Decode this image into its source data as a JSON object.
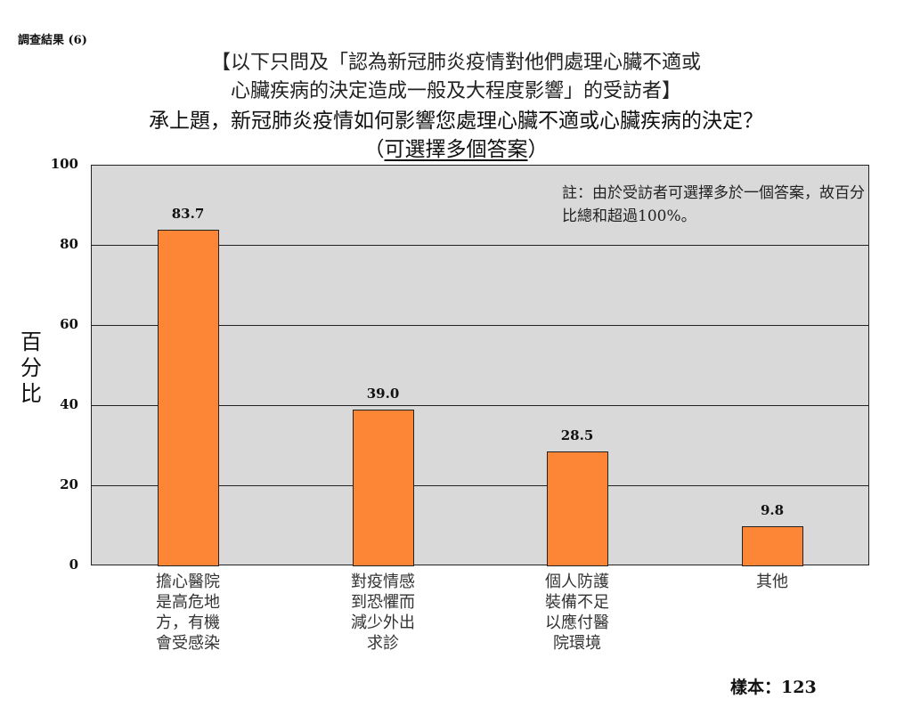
{
  "header": {
    "section_label": "調查結果 (6)",
    "title_line1": "【以下只問及「認為新冠肺炎疫情對他們處理心臟不適或",
    "title_line2": "心臟疾病的決定造成一般及大程度影響」的受訪者】",
    "question": "承上題，新冠肺炎疫情如何影響您處理心臟不適或心臟疾病的決定？",
    "instruction_open": "（",
    "instruction": "可選擇多個答案",
    "instruction_close": "）"
  },
  "note": "註：由於受訪者可選擇多於一個答案，故百分比總和超過100%。",
  "sample": "樣本：123",
  "colors": {
    "bar": "#fd8536",
    "plot_bg": "#d9d9d9",
    "grid": "#222222"
  },
  "chart_data": {
    "type": "bar",
    "title": "承上題，新冠肺炎疫情如何影響您處理心臟不適或心臟疾病的決定？（可選擇多個答案）",
    "xlabel": "",
    "ylabel": "百分比",
    "ylim": [
      0,
      100
    ],
    "yticks": [
      "0",
      "20",
      "40",
      "60",
      "80",
      "100"
    ],
    "grid": true,
    "categories": [
      "擔心醫院是高危地方，有機會受感染",
      "對疫情感到恐懼而減少外出求診",
      "個人防護裝備不足以應付醫院環境",
      "其他"
    ],
    "category_lines": [
      [
        "擔心醫院",
        "是高危地",
        "方，有機",
        "會受感染"
      ],
      [
        "對疫情感",
        "到恐懼而",
        "減少外出",
        "求診"
      ],
      [
        "個人防護",
        "裝備不足",
        "以應付醫",
        "院環境"
      ],
      [
        "其他"
      ]
    ],
    "values": [
      83.7,
      39.0,
      28.5,
      9.8
    ],
    "value_labels": [
      "83.7",
      "39.0",
      "28.5",
      "9.8"
    ],
    "annotations": [
      "註：由於受訪者可選擇多於一個答案，故百分比總和超過100%。",
      "樣本：123"
    ]
  }
}
